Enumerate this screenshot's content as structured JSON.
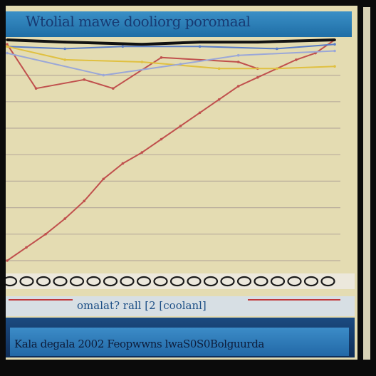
{
  "chart_data": {
    "type": "line",
    "title": "Wtolial mawe dooliorg poromaal",
    "legend_text": "omalat? rall  [2 [coolanl]",
    "footer_text": "Kala degala 2002 Feopwwns lwaS0S0Bolguurda",
    "ylim": [
      0,
      100
    ],
    "grid": true,
    "x_categories": 20,
    "series": [
      {
        "color": "#c0504d",
        "points": [
          [
            0,
            0
          ],
          [
            2,
            6
          ],
          [
            4,
            12
          ],
          [
            6,
            19
          ],
          [
            8,
            27
          ],
          [
            10,
            37
          ],
          [
            12,
            44
          ],
          [
            14,
            49
          ],
          [
            16,
            55
          ],
          [
            18,
            61
          ],
          [
            20,
            67
          ],
          [
            22,
            73
          ],
          [
            24,
            79
          ],
          [
            26,
            83
          ],
          [
            28,
            87
          ],
          [
            30,
            91
          ],
          [
            32,
            94
          ],
          [
            34,
            100
          ]
        ]
      },
      {
        "color": "#111111",
        "points": [
          [
            0,
            100
          ],
          [
            6,
            99
          ],
          [
            14,
            98
          ],
          [
            20,
            99
          ],
          [
            26,
            99
          ],
          [
            34,
            100
          ]
        ]
      },
      {
        "color": "#5a7dc8",
        "points": [
          [
            0,
            97
          ],
          [
            6,
            96
          ],
          [
            12,
            97
          ],
          [
            20,
            97
          ],
          [
            28,
            96
          ],
          [
            34,
            98
          ]
        ]
      },
      {
        "color": "#c0504d",
        "points": [
          [
            0,
            98
          ],
          [
            3,
            78
          ],
          [
            8,
            82
          ],
          [
            11,
            78
          ],
          [
            16,
            92
          ],
          [
            24,
            90
          ],
          [
            26,
            87
          ]
        ]
      },
      {
        "color": "#e0c040",
        "points": [
          [
            0,
            97
          ],
          [
            6,
            91
          ],
          [
            14,
            90
          ],
          [
            22,
            87
          ],
          [
            28,
            87
          ],
          [
            34,
            88
          ]
        ]
      },
      {
        "color": "#9aa7d8",
        "points": [
          [
            0,
            94
          ],
          [
            10,
            84
          ],
          [
            18,
            89
          ],
          [
            24,
            93
          ],
          [
            34,
            95
          ]
        ]
      }
    ]
  }
}
